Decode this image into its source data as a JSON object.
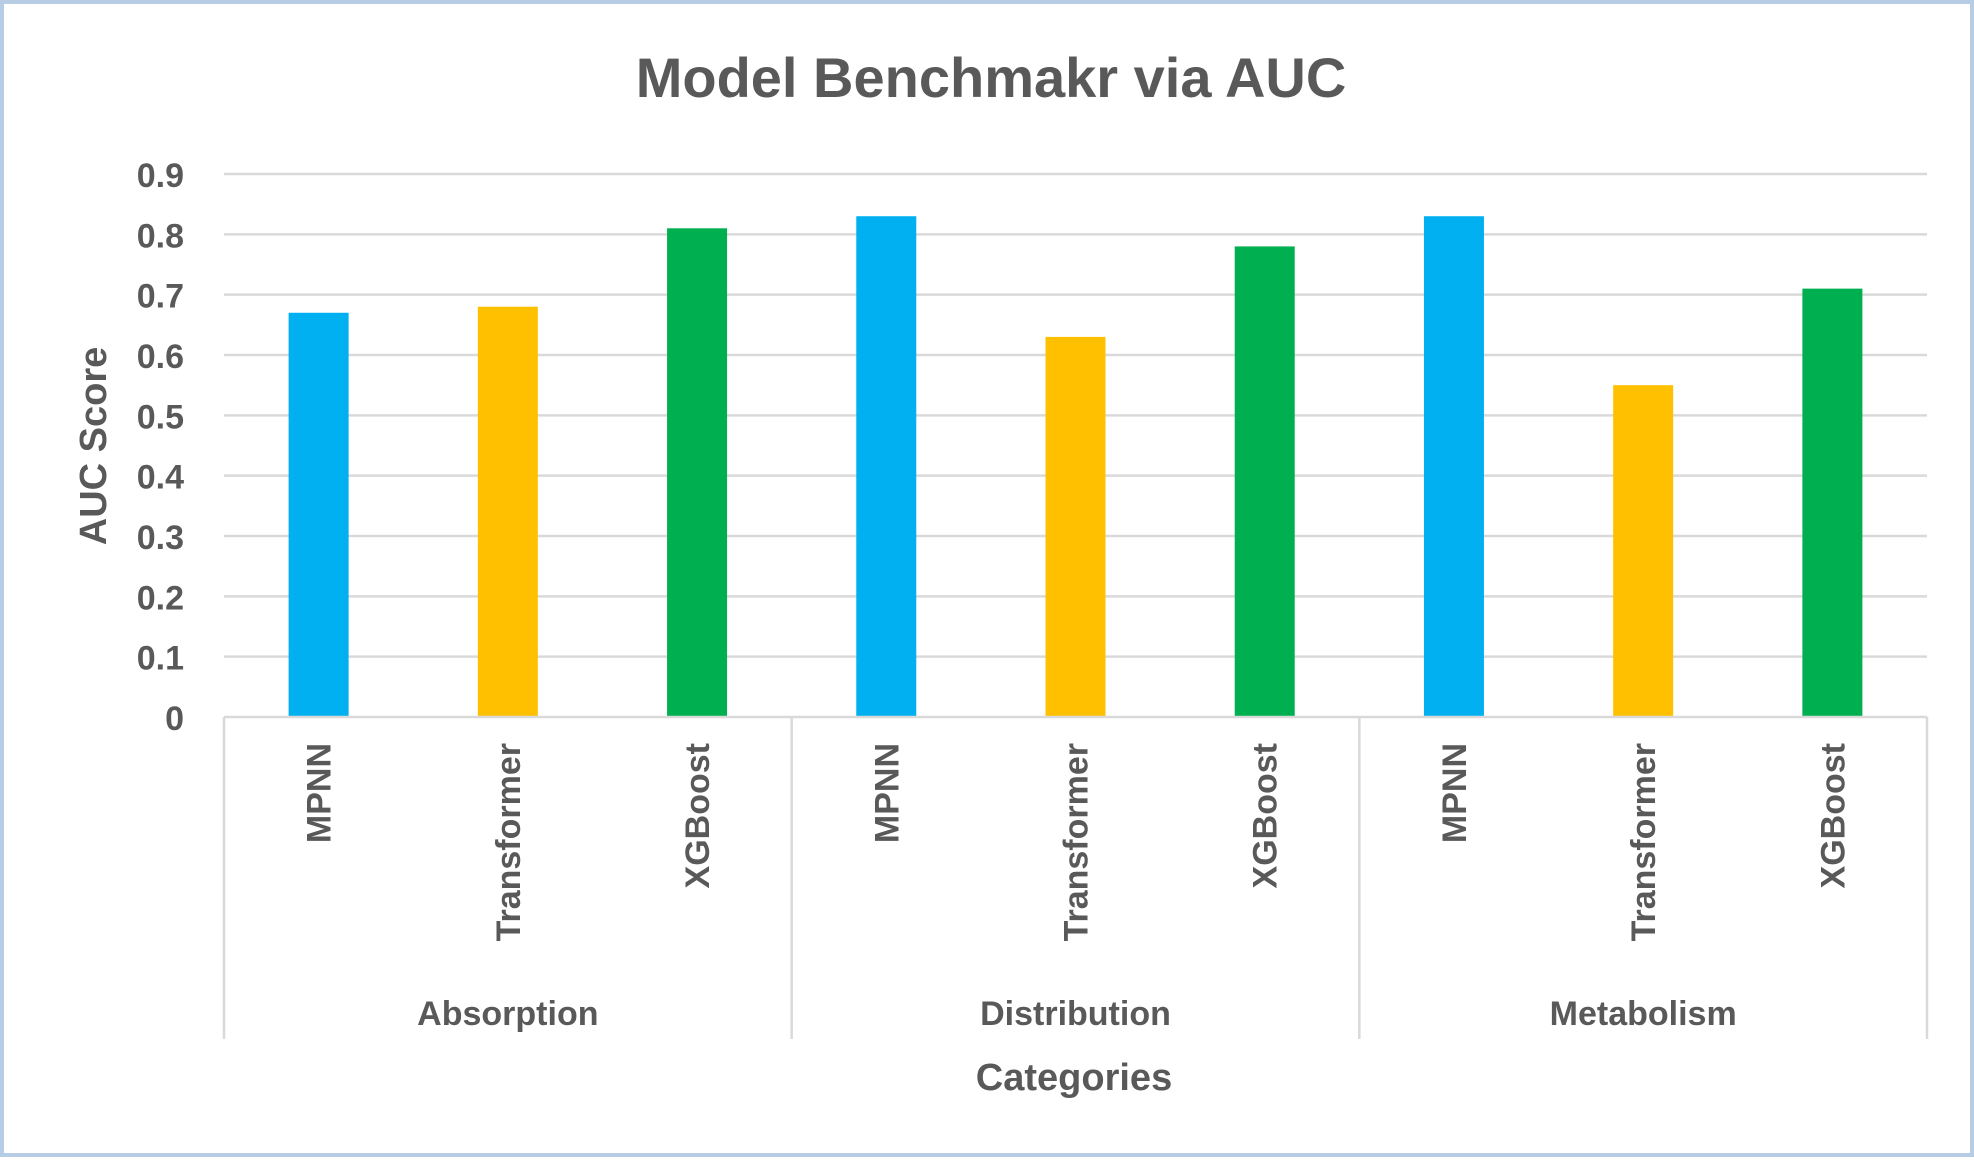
{
  "chart_data": {
    "type": "bar",
    "title": "Model Benchmakr via AUC",
    "xlabel": "Categories",
    "ylabel": "AUC Score",
    "ylim": [
      0,
      0.9
    ],
    "y_ticks": [
      "0",
      "0.1",
      "0.2",
      "0.3",
      "0.4",
      "0.5",
      "0.6",
      "0.7",
      "0.8",
      "0.9"
    ],
    "grid": true,
    "legend": "none",
    "groups": [
      {
        "name": "Absorption",
        "bars": [
          {
            "label": "MPNN",
            "value": 0.67,
            "color": "#00b0f0"
          },
          {
            "label": "Transformer",
            "value": 0.68,
            "color": "#ffc000"
          },
          {
            "label": "XGBoost",
            "value": 0.81,
            "color": "#00b050"
          }
        ]
      },
      {
        "name": "Distribution",
        "bars": [
          {
            "label": "MPNN",
            "value": 0.83,
            "color": "#00b0f0"
          },
          {
            "label": "Transformer",
            "value": 0.63,
            "color": "#ffc000"
          },
          {
            "label": "XGBoost",
            "value": 0.78,
            "color": "#00b050"
          }
        ]
      },
      {
        "name": "Metabolism",
        "bars": [
          {
            "label": "MPNN",
            "value": 0.83,
            "color": "#00b0f0"
          },
          {
            "label": "Transformer",
            "value": 0.55,
            "color": "#ffc000"
          },
          {
            "label": "XGBoost",
            "value": 0.71,
            "color": "#00b050"
          }
        ]
      }
    ]
  },
  "colors": {
    "text": "#595959",
    "gridline": "#d9d9d9",
    "frame_border": "#b7cde6"
  }
}
